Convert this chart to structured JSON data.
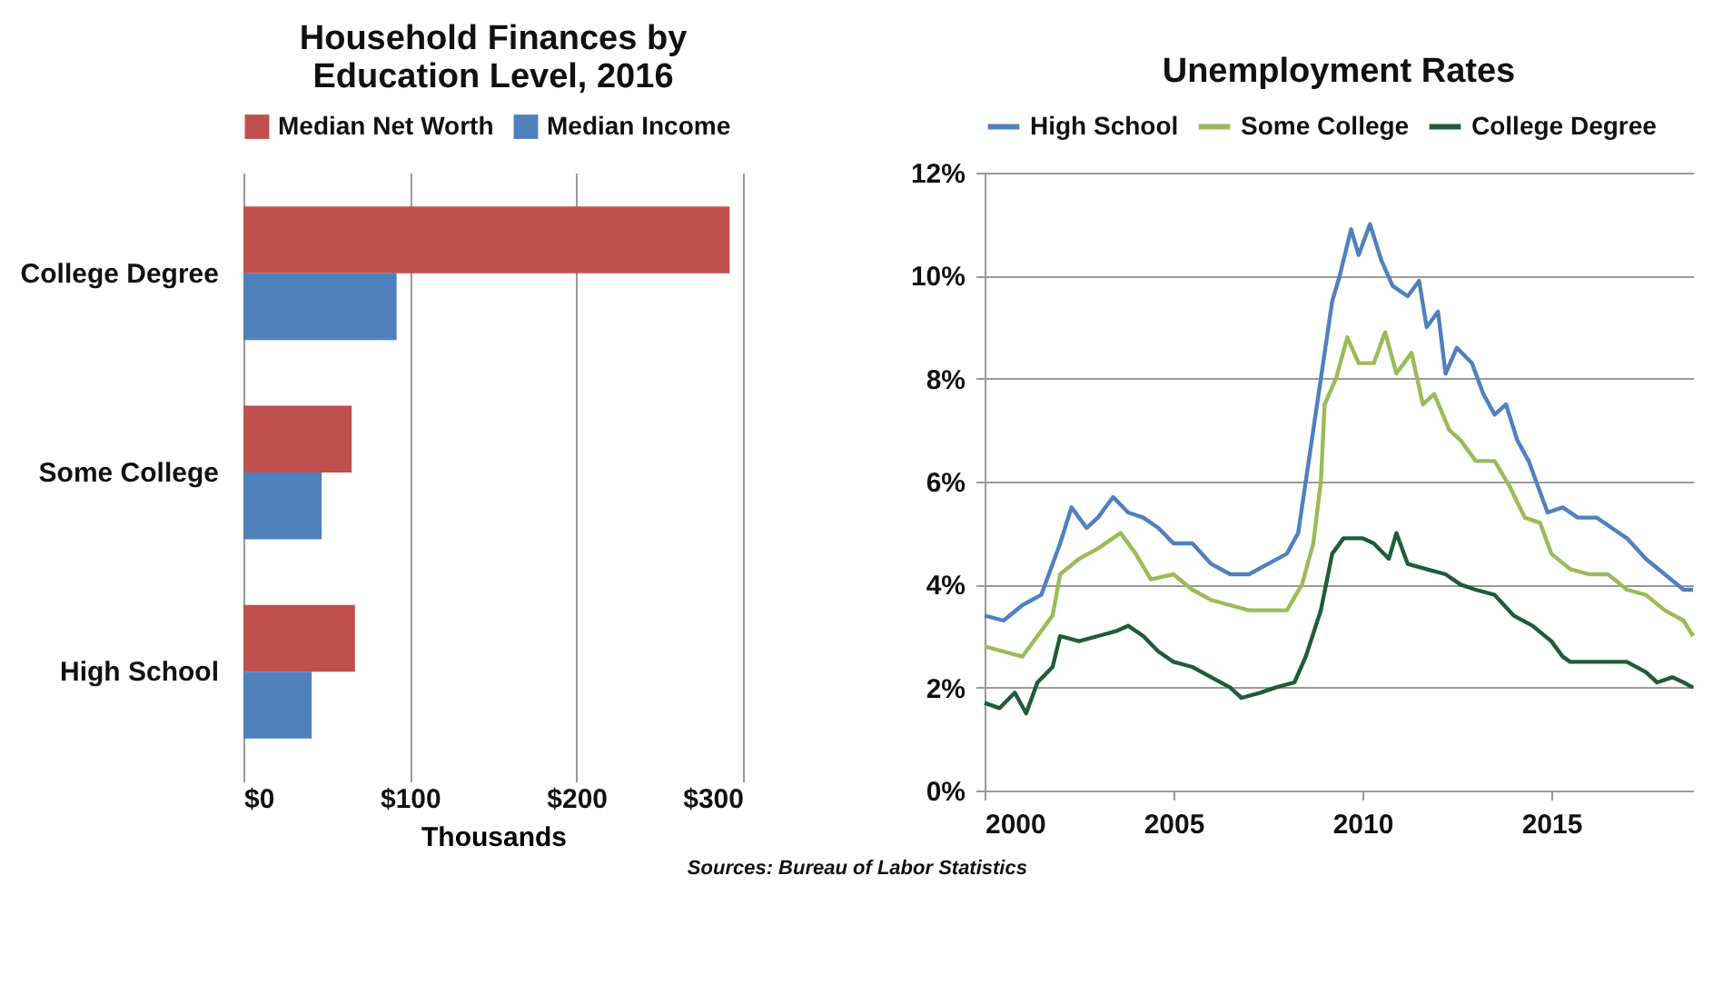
{
  "chart_data": [
    {
      "type": "bar",
      "orientation": "horizontal",
      "title": "Household Finances by Education Level, 2016",
      "xlabel": "Thousands",
      "categories": [
        "College Degree",
        "Some College",
        "High School"
      ],
      "series": [
        {
          "name": "Median Net Worth",
          "color": "#c0504d",
          "values": [
            292,
            65,
            67
          ]
        },
        {
          "name": "Median Income",
          "color": "#4f81bd",
          "values": [
            92,
            47,
            41
          ]
        }
      ],
      "xlim": [
        0,
        300
      ],
      "xticks": [
        {
          "value": 0,
          "label": "$0"
        },
        {
          "value": 100,
          "label": "$100"
        },
        {
          "value": 200,
          "label": "$200"
        },
        {
          "value": 300,
          "label": "$300"
        }
      ],
      "grid": "x",
      "legend": "top",
      "annotations": [
        "Sources: Bureau of Labor Statistics"
      ]
    },
    {
      "type": "line",
      "title": "Unemployment Rates",
      "series": [
        {
          "name": "High School",
          "color": "#4f81bd",
          "x": [
            2000,
            2000.5,
            2001,
            2001.5,
            2002,
            2002.3,
            2002.7,
            2003,
            2003.4,
            2003.8,
            2004.2,
            2004.6,
            2005,
            2005.5,
            2006,
            2006.5,
            2007,
            2007.5,
            2008,
            2008.3,
            2008.5,
            2008.9,
            2009.2,
            2009.4,
            2009.7,
            2009.9,
            2010.2,
            2010.5,
            2010.8,
            2011.2,
            2011.5,
            2011.7,
            2012,
            2012.2,
            2012.5,
            2012.9,
            2013.2,
            2013.5,
            2013.8,
            2014.1,
            2014.4,
            2014.6,
            2014.9,
            2015.3,
            2015.7,
            2016.2,
            2016.6,
            2017,
            2017.5,
            2018,
            2018.5,
            2018.75
          ],
          "values": [
            3.4,
            3.3,
            3.6,
            3.8,
            4.8,
            5.5,
            5.1,
            5.3,
            5.7,
            5.4,
            5.3,
            5.1,
            4.8,
            4.8,
            4.4,
            4.2,
            4.2,
            4.4,
            4.6,
            5.0,
            6.0,
            8.0,
            9.5,
            10.0,
            10.9,
            10.4,
            11.0,
            10.3,
            9.8,
            9.6,
            9.9,
            9.0,
            9.3,
            8.1,
            8.6,
            8.3,
            7.7,
            7.3,
            7.5,
            6.8,
            6.4,
            6.0,
            5.4,
            5.5,
            5.3,
            5.3,
            5.1,
            4.9,
            4.5,
            4.2,
            3.9,
            3.9
          ]
        },
        {
          "name": "Some College",
          "color": "#9bbb59",
          "x": [
            2000,
            2000.5,
            2001,
            2001.4,
            2001.8,
            2002,
            2002.5,
            2003,
            2003.6,
            2004,
            2004.4,
            2005,
            2005.5,
            2006,
            2006.5,
            2007,
            2007.5,
            2008,
            2008.4,
            2008.7,
            2008.9,
            2009,
            2009.3,
            2009.6,
            2009.9,
            2010.3,
            2010.6,
            2010.9,
            2011.3,
            2011.6,
            2011.9,
            2012.3,
            2012.6,
            2013,
            2013.5,
            2013.9,
            2014.3,
            2014.7,
            2015,
            2015.5,
            2016,
            2016.5,
            2017,
            2017.5,
            2018,
            2018.5,
            2018.75
          ],
          "values": [
            2.8,
            2.7,
            2.6,
            3.0,
            3.4,
            4.2,
            4.5,
            4.7,
            5.0,
            4.6,
            4.1,
            4.2,
            3.9,
            3.7,
            3.6,
            3.5,
            3.5,
            3.5,
            4.0,
            4.8,
            6.0,
            7.5,
            8.0,
            8.8,
            8.3,
            8.3,
            8.9,
            8.1,
            8.5,
            7.5,
            7.7,
            7.0,
            6.8,
            6.4,
            6.4,
            5.9,
            5.3,
            5.2,
            4.6,
            4.3,
            4.2,
            4.2,
            3.9,
            3.8,
            3.5,
            3.3,
            3.0
          ]
        },
        {
          "name": "College Degree",
          "color": "#1f5c3a",
          "x": [
            2000,
            2000.4,
            2000.8,
            2001.1,
            2001.4,
            2001.8,
            2002,
            2002.5,
            2003,
            2003.5,
            2003.8,
            2004.2,
            2004.6,
            2005,
            2005.5,
            2006,
            2006.5,
            2006.8,
            2007.3,
            2007.7,
            2008.2,
            2008.5,
            2008.9,
            2009.2,
            2009.5,
            2010,
            2010.3,
            2010.7,
            2010.9,
            2011.2,
            2011.7,
            2012.2,
            2012.6,
            2013,
            2013.5,
            2014,
            2014.5,
            2015,
            2015.3,
            2015.5,
            2016,
            2016.5,
            2017,
            2017.5,
            2017.8,
            2018.2,
            2018.5,
            2018.75
          ],
          "values": [
            1.7,
            1.6,
            1.9,
            1.5,
            2.1,
            2.4,
            3.0,
            2.9,
            3.0,
            3.1,
            3.2,
            3.0,
            2.7,
            2.5,
            2.4,
            2.2,
            2.0,
            1.8,
            1.9,
            2.0,
            2.1,
            2.6,
            3.5,
            4.6,
            4.9,
            4.9,
            4.8,
            4.5,
            5.0,
            4.4,
            4.3,
            4.2,
            4.0,
            3.9,
            3.8,
            3.4,
            3.2,
            2.9,
            2.6,
            2.5,
            2.5,
            2.5,
            2.5,
            2.3,
            2.1,
            2.2,
            2.1,
            2.0
          ]
        }
      ],
      "xlim": [
        2000,
        2018.75
      ],
      "xticks": [
        2000,
        2005,
        2010,
        2015
      ],
      "ylim": [
        0,
        12
      ],
      "yticks": [
        {
          "value": 0,
          "label": "0%"
        },
        {
          "value": 2,
          "label": "2%"
        },
        {
          "value": 4,
          "label": "4%"
        },
        {
          "value": 6,
          "label": "6%"
        },
        {
          "value": 8,
          "label": "8%"
        },
        {
          "value": 10,
          "label": "10%"
        },
        {
          "value": 12,
          "label": "12%"
        }
      ],
      "grid": "y",
      "legend": "top"
    }
  ]
}
